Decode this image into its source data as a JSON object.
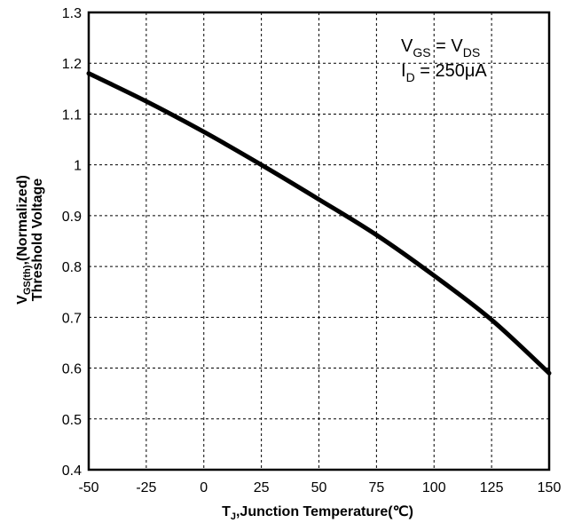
{
  "chart_data": {
    "type": "line",
    "xlabel": {
      "main": "T",
      "sub": "J",
      "rest": ",Junction Temperature(℃)"
    },
    "ylabel": {
      "line1": {
        "main": "V",
        "sub": "GS(th)",
        "rest": ",(Normalized)"
      },
      "line2": "Threshold Voltage"
    },
    "xlim": [
      -50,
      150
    ],
    "ylim": [
      0.4,
      1.3
    ],
    "xticks": [
      -50,
      -25,
      0,
      25,
      50,
      75,
      100,
      125,
      150
    ],
    "yticks": [
      0.4,
      0.5,
      0.6,
      0.7,
      0.8,
      0.9,
      1,
      1.1,
      1.2,
      1.3
    ],
    "xtick_labels": [
      "-50",
      "-25",
      "0",
      "25",
      "50",
      "75",
      "100",
      "125",
      "150"
    ],
    "ytick_labels": [
      "0.4",
      "0.5",
      "0.6",
      "0.7",
      "0.8",
      "0.9",
      "1",
      "1.1",
      "1.2",
      "1.3"
    ],
    "grid": true,
    "annotation": {
      "line1": {
        "a": "V",
        "a_sub": "GS",
        "mid": " = V",
        "b_sub": "DS"
      },
      "line2": {
        "a": "I",
        "a_sub": "D",
        "rest": " = 250μA"
      }
    },
    "series": [
      {
        "color": "#000000",
        "x": [
          -50,
          -25,
          0,
          25,
          50,
          75,
          100,
          125,
          150
        ],
        "y": [
          1.18,
          1.125,
          1.065,
          1.0,
          0.932,
          0.862,
          0.782,
          0.695,
          0.59
        ]
      }
    ]
  }
}
